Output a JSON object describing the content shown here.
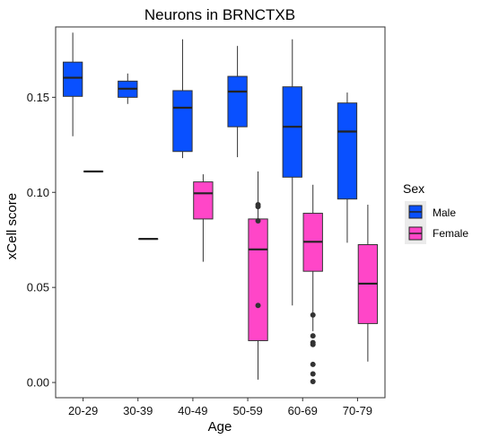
{
  "chart_data": {
    "type": "boxplot",
    "title": "Neurons in BRNCTXB",
    "xlabel": "Age",
    "ylabel": "xCell score",
    "ylim": [
      -0.008,
      0.187
    ],
    "yticks": [
      "0.00",
      "0.05",
      "0.10",
      "0.15"
    ],
    "ytick_values": [
      0.0,
      0.05,
      0.1,
      0.15
    ],
    "grid": false,
    "legend": {
      "title": "Sex",
      "position": "right",
      "entries": [
        {
          "key": "Male",
          "label": "Male",
          "color": "#0950ff"
        },
        {
          "key": "Female",
          "label": "Female",
          "color": "#ff46c8"
        }
      ]
    },
    "categories": [
      "20-29",
      "30-39",
      "40-49",
      "50-59",
      "60-69",
      "70-79"
    ],
    "series": [
      {
        "name": "Male",
        "color": "#0950ff",
        "boxes": [
          {
            "category": "20-29",
            "min": 0.1295,
            "q1": 0.1505,
            "median": 0.1603,
            "q3": 0.1685,
            "max": 0.184,
            "outliers": []
          },
          {
            "category": "30-39",
            "min": 0.1465,
            "q1": 0.15,
            "median": 0.1545,
            "q3": 0.1585,
            "max": 0.1625,
            "outliers": []
          },
          {
            "category": "40-49",
            "min": 0.118,
            "q1": 0.1215,
            "median": 0.1445,
            "q3": 0.1535,
            "max": 0.1805,
            "outliers": []
          },
          {
            "category": "50-59",
            "min": 0.1185,
            "q1": 0.1345,
            "median": 0.153,
            "q3": 0.161,
            "max": 0.177,
            "outliers": []
          },
          {
            "category": "60-69",
            "min": 0.0405,
            "q1": 0.108,
            "median": 0.1345,
            "q3": 0.1555,
            "max": 0.1805,
            "outliers": []
          },
          {
            "category": "70-79",
            "min": 0.0735,
            "q1": 0.0965,
            "median": 0.132,
            "q3": 0.147,
            "max": 0.1525,
            "outliers": []
          }
        ]
      },
      {
        "name": "Female",
        "color": "#ff46c8",
        "boxes": [
          {
            "category": "20-29",
            "min": 0.111,
            "q1": 0.111,
            "median": 0.111,
            "q3": 0.111,
            "max": 0.111,
            "outliers": []
          },
          {
            "category": "30-39",
            "min": 0.0755,
            "q1": 0.0755,
            "median": 0.0755,
            "q3": 0.0755,
            "max": 0.0755,
            "outliers": []
          },
          {
            "category": "40-49",
            "min": 0.0635,
            "q1": 0.086,
            "median": 0.0995,
            "q3": 0.1055,
            "max": 0.1095,
            "outliers": []
          },
          {
            "category": "50-59",
            "min": 0.0015,
            "q1": 0.022,
            "median": 0.07,
            "q3": 0.086,
            "max": 0.111,
            "outliers": [
              0.0935,
              0.0925,
              0.085,
              0.0405
            ]
          },
          {
            "category": "60-69",
            "min": 0.027,
            "q1": 0.0585,
            "median": 0.074,
            "q3": 0.089,
            "max": 0.104,
            "outliers": [
              0.0355,
              0.0245,
              0.021,
              0.02,
              0.0095,
              0.0045,
              0.0005
            ]
          },
          {
            "category": "70-79",
            "min": 0.011,
            "q1": 0.031,
            "median": 0.052,
            "q3": 0.0725,
            "max": 0.0935,
            "outliers": []
          }
        ]
      }
    ]
  }
}
